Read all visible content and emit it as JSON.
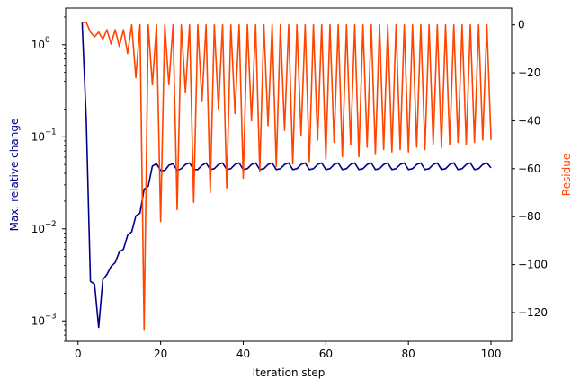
{
  "chart_data": {
    "type": "line",
    "xlabel": "Iteration step",
    "ylabel_left": "Max. relative change",
    "ylabel_right": "Residue",
    "colors": {
      "left": "#00008b",
      "right": "#ff4500"
    },
    "xlim": [
      -3,
      105
    ],
    "ylim_left": [
      0.0006,
      2.5
    ],
    "yscale_left": "log",
    "ylim_right": [
      -132,
      7
    ],
    "xticks": [
      0,
      20,
      40,
      60,
      80,
      100
    ],
    "xtick_labels": [
      "0",
      "20",
      "40",
      "60",
      "80",
      "100"
    ],
    "yticks_left": [
      0.001,
      0.01,
      0.1,
      1
    ],
    "ytick_labels_left": [
      "10",
      "10",
      "10",
      "10"
    ],
    "ytick_exponents_left": [
      "−3",
      "−2",
      "−1",
      "0"
    ],
    "yticks_right": [
      0,
      -20,
      -40,
      -60,
      -80,
      -100,
      -120
    ],
    "ytick_labels_right": [
      "0",
      "−20",
      "−40",
      "−60",
      "−80",
      "−100",
      "−120"
    ],
    "grid": false,
    "series": [
      {
        "axis": "left",
        "x": [
          1,
          2,
          3,
          4,
          5,
          6,
          7,
          8,
          9,
          10,
          11,
          12,
          13,
          14,
          15,
          16,
          17,
          18,
          19,
          20,
          21,
          22,
          23,
          24,
          25,
          26,
          27,
          28,
          29,
          30,
          31,
          32,
          33,
          34,
          35,
          36,
          37,
          38,
          39,
          40,
          41,
          42,
          43,
          44,
          45,
          46,
          47,
          48,
          49,
          50,
          51,
          52,
          53,
          54,
          55,
          56,
          57,
          58,
          59,
          60,
          61,
          62,
          63,
          64,
          65,
          66,
          67,
          68,
          69,
          70,
          71,
          72,
          73,
          74,
          75,
          76,
          77,
          78,
          79,
          80,
          81,
          82,
          83,
          84,
          85,
          86,
          87,
          88,
          89,
          90,
          91,
          92,
          93,
          94,
          95,
          96,
          97,
          98,
          99,
          100
        ],
        "values": [
          1.75,
          0.15,
          0.0027,
          0.0025,
          0.00085,
          0.0028,
          0.0032,
          0.0039,
          0.0043,
          0.0056,
          0.006,
          0.0085,
          0.0093,
          0.0138,
          0.0148,
          0.027,
          0.029,
          0.048,
          0.051,
          0.043,
          0.043,
          0.049,
          0.051,
          0.043,
          0.045,
          0.05,
          0.052,
          0.044,
          0.044,
          0.049,
          0.052,
          0.044,
          0.045,
          0.05,
          0.052,
          0.044,
          0.045,
          0.05,
          0.052,
          0.044,
          0.045,
          0.05,
          0.052,
          0.044,
          0.045,
          0.05,
          0.052,
          0.044,
          0.045,
          0.05,
          0.052,
          0.044,
          0.045,
          0.05,
          0.052,
          0.044,
          0.045,
          0.05,
          0.052,
          0.044,
          0.045,
          0.05,
          0.052,
          0.044,
          0.045,
          0.05,
          0.052,
          0.044,
          0.045,
          0.05,
          0.052,
          0.044,
          0.045,
          0.05,
          0.052,
          0.044,
          0.045,
          0.05,
          0.052,
          0.044,
          0.045,
          0.05,
          0.052,
          0.044,
          0.045,
          0.05,
          0.052,
          0.044,
          0.045,
          0.05,
          0.052,
          0.044,
          0.045,
          0.05,
          0.052,
          0.044,
          0.045,
          0.05,
          0.052,
          0.046
        ]
      },
      {
        "axis": "right",
        "x": [
          1,
          2,
          3,
          4,
          5,
          6,
          7,
          8,
          9,
          10,
          11,
          12,
          13,
          14,
          15,
          16,
          17,
          18,
          19,
          20,
          21,
          22,
          23,
          24,
          25,
          26,
          27,
          28,
          29,
          30,
          31,
          32,
          33,
          34,
          35,
          36,
          37,
          38,
          39,
          40,
          41,
          42,
          43,
          44,
          45,
          46,
          47,
          48,
          49,
          50,
          51,
          52,
          53,
          54,
          55,
          56,
          57,
          58,
          59,
          60,
          61,
          62,
          63,
          64,
          65,
          66,
          67,
          68,
          69,
          70,
          71,
          72,
          73,
          74,
          75,
          76,
          77,
          78,
          79,
          80,
          81,
          82,
          83,
          84,
          85,
          86,
          87,
          88,
          89,
          90,
          91,
          92,
          93,
          94,
          95,
          96,
          97,
          98,
          99,
          100
        ],
        "values": [
          1,
          1,
          -3,
          -5,
          -3,
          -6,
          -2,
          -8,
          -2,
          -9,
          -2,
          -12,
          0,
          -22,
          0,
          -127,
          0,
          -25,
          0,
          -82,
          0,
          -25,
          0,
          -77,
          0,
          -28,
          0,
          -74,
          0,
          -32,
          0,
          -70,
          0,
          -35,
          0,
          -68,
          0,
          -37,
          0,
          -64,
          0,
          -40,
          0,
          -61,
          0,
          -42,
          0,
          -59,
          0,
          -44,
          0,
          -58,
          0,
          -46,
          0,
          -57,
          0,
          -48,
          0,
          -56,
          0,
          -49,
          0,
          -55,
          0,
          -50,
          0,
          -55,
          0,
          -51,
          0,
          -54,
          0,
          -52,
          0,
          -53,
          0,
          -52,
          0,
          -53,
          0,
          -51,
          0,
          -52,
          0,
          -50,
          0,
          -51,
          0,
          -50,
          0,
          -49,
          0,
          -50,
          0,
          -49,
          0,
          -48,
          0,
          -48
        ]
      }
    ]
  }
}
